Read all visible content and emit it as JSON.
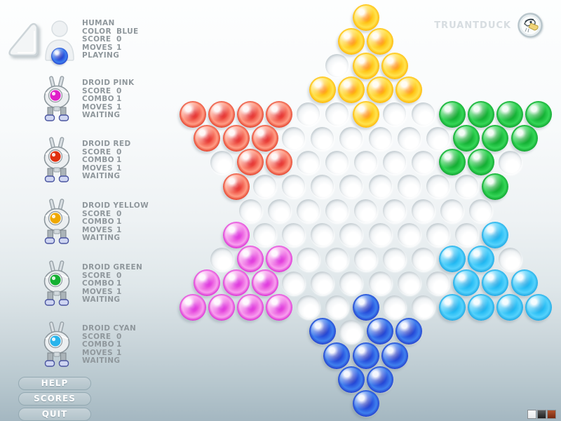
{
  "header": {
    "brand": "TRUANTDUCK",
    "logo": "duck-logo"
  },
  "players": [
    {
      "id": "human",
      "name": "HUMAN",
      "kind": "human",
      "color": "#2443d6",
      "color_name": "BLUE",
      "stats": [
        {
          "label": "COLOR",
          "value": "BLUE"
        },
        {
          "label": "SCORE",
          "value": "0"
        },
        {
          "label": "MOVES",
          "value": "1"
        }
      ],
      "status": "PLAYING"
    },
    {
      "id": "droid-pink",
      "name": "DROID PINK",
      "kind": "droid",
      "color": "#e020c8",
      "stats": [
        {
          "label": "SCORE",
          "value": "0"
        },
        {
          "label": "COMBO",
          "value": "1"
        },
        {
          "label": "MOVES",
          "value": "1"
        }
      ],
      "status": "WAITING"
    },
    {
      "id": "droid-red",
      "name": "DROID RED",
      "kind": "droid",
      "color": "#e03010",
      "stats": [
        {
          "label": "SCORE",
          "value": "0"
        },
        {
          "label": "COMBO",
          "value": "1"
        },
        {
          "label": "MOVES",
          "value": "1"
        }
      ],
      "status": "WAITING"
    },
    {
      "id": "droid-yellow",
      "name": "DROID YELLOW",
      "kind": "droid",
      "color": "#efא00",
      "stats": [
        {
          "label": "SCORE",
          "value": "0"
        },
        {
          "label": "COMBO",
          "value": "1"
        },
        {
          "label": "MOVES",
          "value": "1"
        }
      ],
      "status": "WAITING"
    },
    {
      "id": "droid-green",
      "name": "DROID GREEN",
      "kind": "droid",
      "color": "#14b031",
      "stats": [
        {
          "label": "SCORE",
          "value": "0"
        },
        {
          "label": "COMBO",
          "value": "1"
        },
        {
          "label": "MOVES",
          "value": "1"
        }
      ],
      "status": "WAITING"
    },
    {
      "id": "droid-cyan",
      "name": "DROID CYAN",
      "kind": "droid",
      "color": "#28b4ec",
      "stats": [
        {
          "label": "SCORE",
          "value": "0"
        },
        {
          "label": "COMBO",
          "value": "1"
        },
        {
          "label": "MOVES",
          "value": "1"
        }
      ],
      "status": "WAITING"
    }
  ],
  "buttons": [
    {
      "label": "HELP"
    },
    {
      "label": "SCORES"
    },
    {
      "label": "QUIT"
    }
  ],
  "theme_swatches": [
    {
      "name": "light",
      "color": "#f2f3f4"
    },
    {
      "name": "dark",
      "color": "#3c3c3c"
    },
    {
      "name": "brown",
      "color": "#a14424"
    }
  ],
  "board": {
    "row_lengths": [
      1,
      2,
      3,
      4,
      13,
      12,
      11,
      10,
      9,
      10,
      11,
      12,
      13,
      4,
      3,
      2,
      1
    ],
    "marbles": {
      "yellow": [
        [
          1,
          1
        ],
        [
          2,
          1
        ],
        [
          2,
          2
        ],
        [
          3,
          2
        ],
        [
          3,
          3
        ],
        [
          4,
          1
        ],
        [
          4,
          2
        ],
        [
          4,
          3
        ],
        [
          4,
          4
        ],
        [
          5,
          7
        ]
      ],
      "red": [
        [
          5,
          1
        ],
        [
          5,
          2
        ],
        [
          5,
          3
        ],
        [
          5,
          4
        ],
        [
          6,
          1
        ],
        [
          6,
          2
        ],
        [
          6,
          3
        ],
        [
          7,
          2
        ],
        [
          7,
          3
        ],
        [
          8,
          1
        ]
      ],
      "green": [
        [
          5,
          10
        ],
        [
          5,
          11
        ],
        [
          5,
          12
        ],
        [
          5,
          13
        ],
        [
          6,
          10
        ],
        [
          6,
          11
        ],
        [
          6,
          12
        ],
        [
          7,
          9
        ],
        [
          7,
          10
        ],
        [
          8,
          10
        ]
      ],
      "pink": [
        [
          10,
          1
        ],
        [
          11,
          2
        ],
        [
          11,
          3
        ],
        [
          12,
          1
        ],
        [
          12,
          2
        ],
        [
          12,
          3
        ],
        [
          13,
          1
        ],
        [
          13,
          2
        ],
        [
          13,
          3
        ],
        [
          13,
          4
        ]
      ],
      "cyan": [
        [
          10,
          10
        ],
        [
          11,
          9
        ],
        [
          11,
          10
        ],
        [
          12,
          10
        ],
        [
          12,
          11
        ],
        [
          12,
          12
        ],
        [
          13,
          10
        ],
        [
          13,
          11
        ],
        [
          13,
          12
        ],
        [
          13,
          13
        ]
      ],
      "blue": [
        [
          13,
          7
        ],
        [
          14,
          1
        ],
        [
          14,
          3
        ],
        [
          14,
          4
        ],
        [
          15,
          1
        ],
        [
          15,
          2
        ],
        [
          15,
          3
        ],
        [
          16,
          1
        ],
        [
          16,
          2
        ],
        [
          17,
          1
        ]
      ]
    },
    "colors": {
      "yellow": {
        "center": "#ff8a00",
        "inner": "#ffc416",
        "body": "#ffe34e",
        "deep": "#ffb200",
        "rim": "#c03d00"
      },
      "red": {
        "center": "#e00f0f",
        "inner": "#f0584a",
        "body": "#ff9d85",
        "deep": "#e03520",
        "rim": "#8e0000"
      },
      "green": {
        "center": "#0fa32a",
        "inner": "#16b437",
        "body": "#35d657",
        "deep": "#0d9e2c",
        "rim": "#045710"
      },
      "pink": {
        "center": "#d814d8",
        "inner": "#ea5ce0",
        "body": "#f8a0ee",
        "deep": "#d81fd0",
        "rim": "#7d0a85"
      },
      "cyan": {
        "center": "#14a4e4",
        "inner": "#28bdf4",
        "body": "#55d2fc",
        "deep": "#18a2e0",
        "rim": "#0b63b8"
      },
      "blue": {
        "center": "#1f35c0",
        "inner": "#2850dc",
        "body": "#3f80ee",
        "deep": "#2038c8",
        "rim": "#0c1168"
      }
    }
  }
}
